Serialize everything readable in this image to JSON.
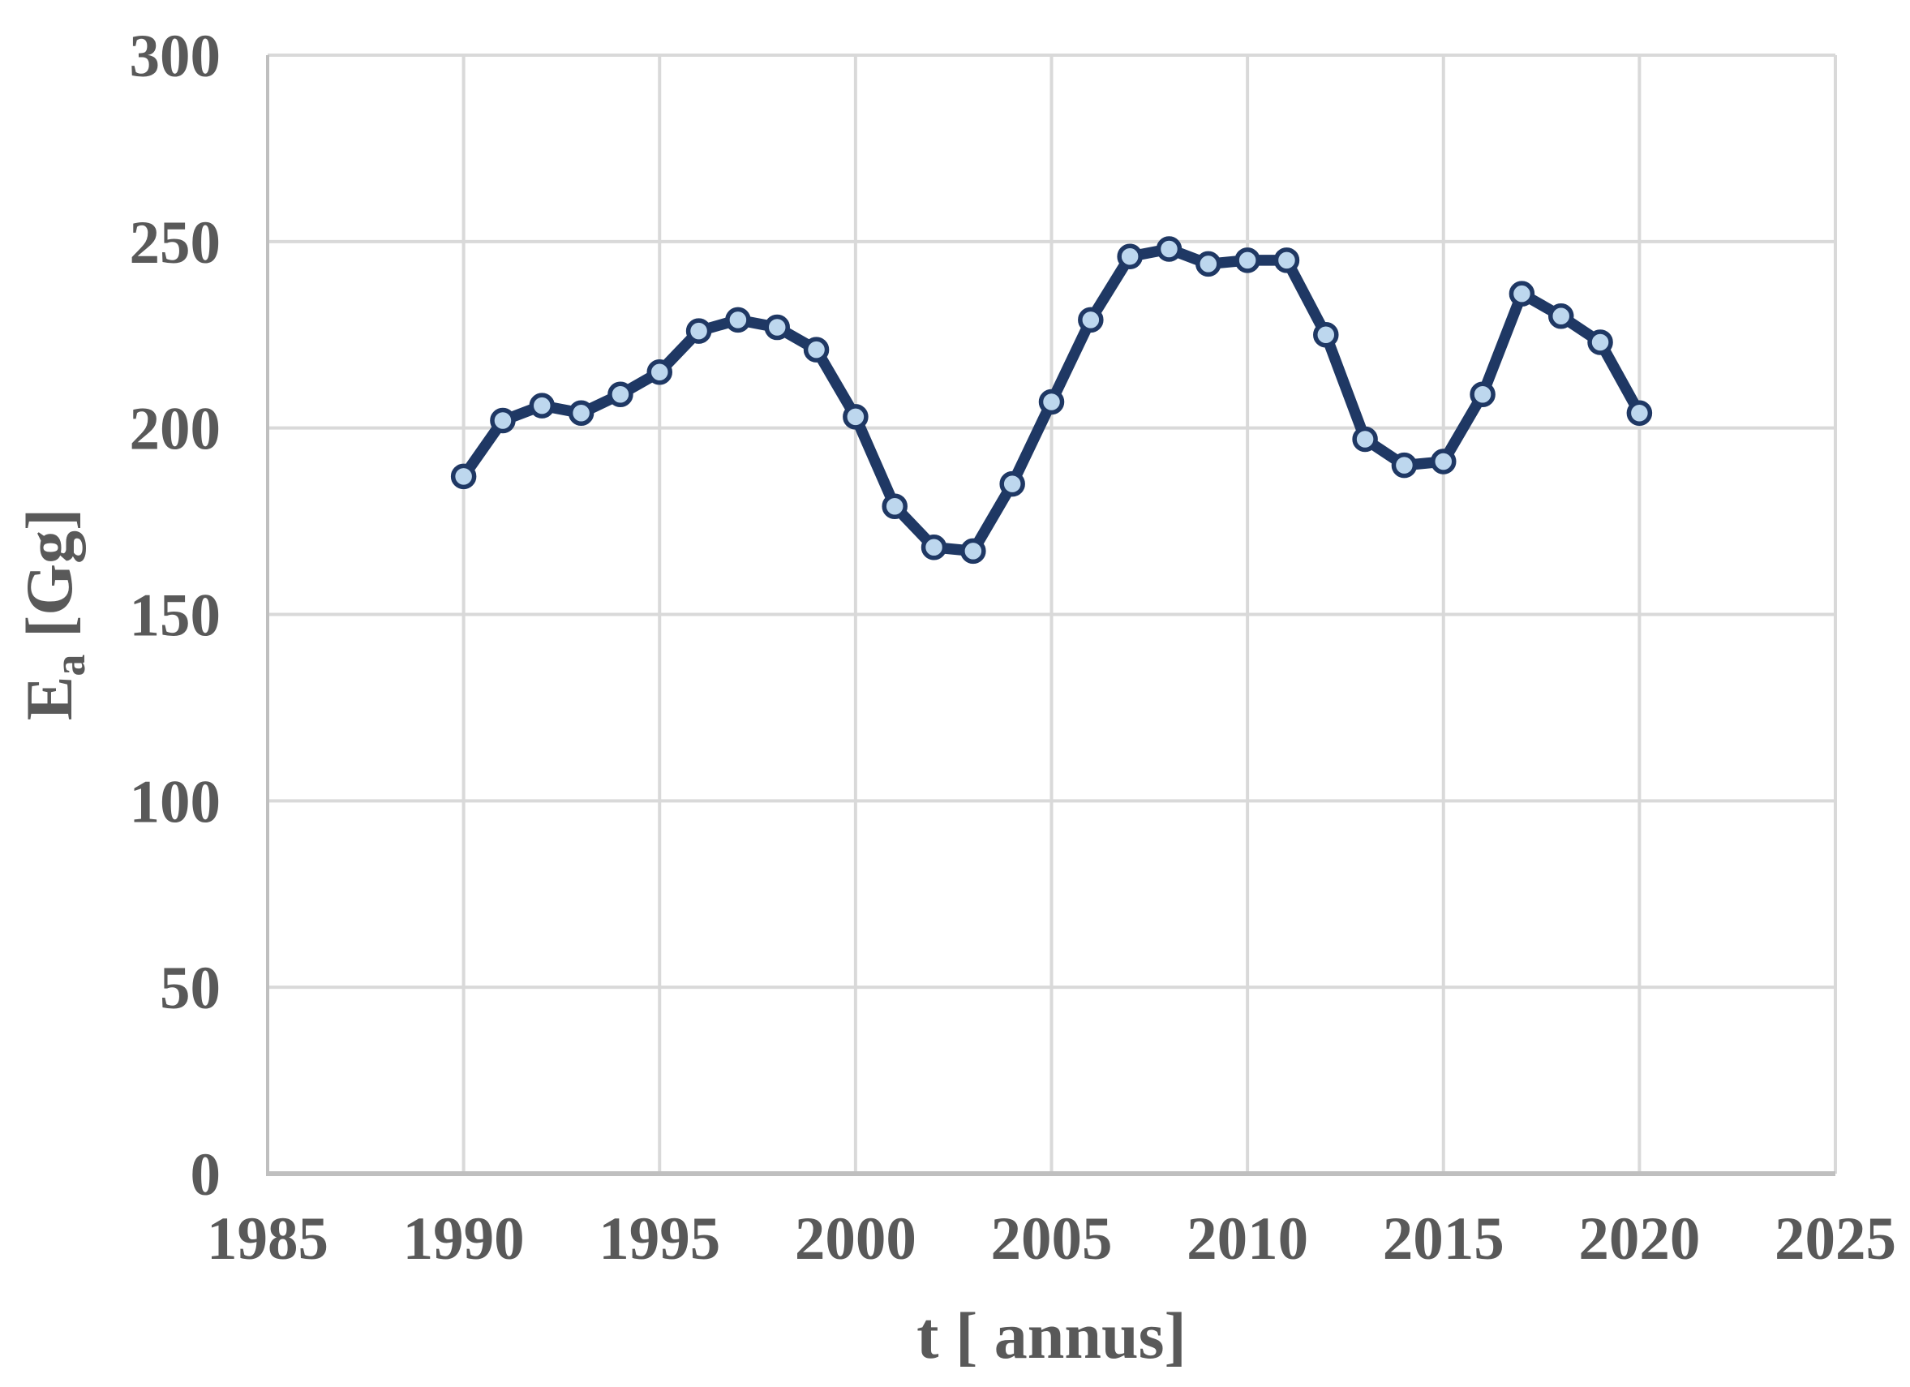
{
  "chart_data": {
    "type": "line",
    "title": "",
    "xlabel": "t [ annus]",
    "ylabel": {
      "symbol": "E",
      "subscript": "a",
      "unit": " [Gg]"
    },
    "x": [
      1990,
      1991,
      1992,
      1993,
      1994,
      1995,
      1996,
      1997,
      1998,
      1999,
      2000,
      2001,
      2002,
      2003,
      2004,
      2005,
      2006,
      2007,
      2008,
      2009,
      2010,
      2011,
      2012,
      2013,
      2014,
      2015,
      2016,
      2017,
      2018,
      2019,
      2020
    ],
    "values": [
      187,
      202,
      206,
      204,
      209,
      215,
      226,
      229,
      227,
      221,
      203,
      179,
      168,
      167,
      185,
      207,
      229,
      246,
      248,
      244,
      245,
      245,
      225,
      197,
      190,
      191,
      209,
      236,
      230,
      223,
      204
    ],
    "xlim": [
      1985,
      2025
    ],
    "ylim": [
      0,
      300
    ],
    "xticks": [
      1985,
      1990,
      1995,
      2000,
      2005,
      2010,
      2015,
      2020,
      2025
    ],
    "yticks": [
      0,
      50,
      100,
      150,
      200,
      250,
      300
    ],
    "grid": true,
    "legend_position": "none",
    "colors": {
      "line": "#1F3864",
      "marker_fill": "#BDD7EE",
      "grid": "#D9D9D9",
      "axis": "#BFBFBF",
      "text": "#595959"
    }
  }
}
